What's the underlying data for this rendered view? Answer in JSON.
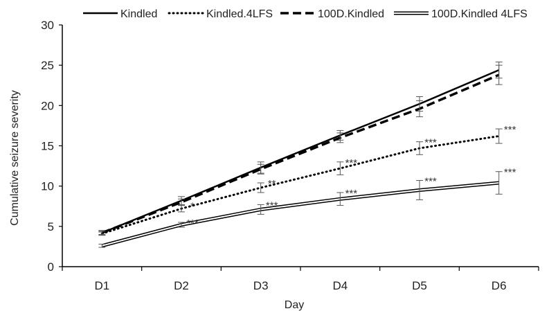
{
  "chart_data": {
    "type": "line",
    "xlabel": "Day",
    "ylabel": "Cumulative seizure severity",
    "categories": [
      "D1",
      "D2",
      "D3",
      "D4",
      "D5",
      "D6"
    ],
    "ylim": [
      0,
      30
    ],
    "yticks": [
      0,
      5,
      10,
      15,
      20,
      25,
      30
    ],
    "grid": false,
    "legend_position": "top",
    "series": [
      {
        "name": "Kindled",
        "style": "solid",
        "color": "#000000",
        "values": [
          4.2,
          8.2,
          12.3,
          16.3,
          20.2,
          24.4
        ],
        "errors": [
          0.3,
          0.5,
          0.7,
          0.6,
          0.9,
          1.0
        ]
      },
      {
        "name": "Kindled.4LFS",
        "style": "dotted",
        "color": "#000000",
        "values": [
          4.1,
          7.2,
          9.8,
          12.2,
          14.7,
          16.2
        ],
        "errors": [
          0.2,
          0.4,
          0.6,
          0.8,
          0.8,
          0.9
        ],
        "significance": [
          "",
          "*",
          "**",
          "***",
          "***",
          "***"
        ]
      },
      {
        "name": "100D.Kindled",
        "style": "dashed",
        "color": "#000000",
        "values": [
          4.2,
          8.0,
          12.1,
          16.0,
          19.6,
          23.8
        ],
        "errors": [
          0.2,
          0.4,
          0.6,
          0.6,
          1.0,
          1.2
        ]
      },
      {
        "name": "100D.Kindled 4LFS",
        "style": "double",
        "color": "#000000",
        "values": [
          2.6,
          5.2,
          7.1,
          8.4,
          9.5,
          10.4
        ],
        "errors": [
          0.2,
          0.3,
          0.6,
          0.8,
          1.2,
          1.4
        ],
        "significance": [
          "",
          "***",
          "***",
          "***",
          "***",
          "***"
        ]
      }
    ]
  }
}
